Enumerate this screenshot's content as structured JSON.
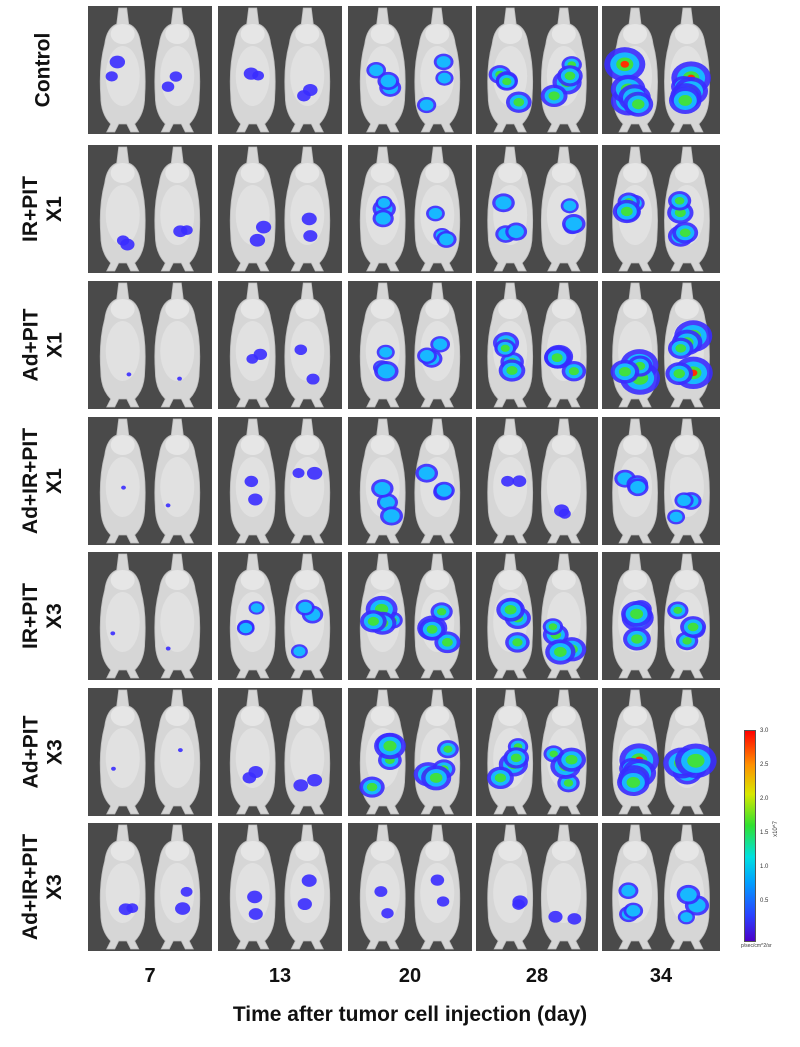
{
  "rows": [
    {
      "lines": [
        "Control"
      ]
    },
    {
      "lines": [
        "IR+PIT",
        "X1"
      ]
    },
    {
      "lines": [
        "Ad+PIT",
        "X1"
      ]
    },
    {
      "lines": [
        "Ad+IR+PIT",
        "X1"
      ]
    },
    {
      "lines": [
        "IR+PIT",
        "X3"
      ]
    },
    {
      "lines": [
        "Ad+PIT",
        "X3"
      ]
    },
    {
      "lines": [
        "Ad+IR+PIT",
        "X3"
      ]
    }
  ],
  "days": [
    "7",
    "13",
    "20",
    "28",
    "34"
  ],
  "xaxis_label": "Time after tumor cell injection (day)",
  "colorbar": {
    "ticks": [
      "3.0",
      "2.5",
      "2.0",
      "1.5",
      "1.0",
      "0.5"
    ],
    "unit": "x10^7",
    "footer": "p/sec/cm^2/sr"
  },
  "signal_levels": [
    [
      1,
      1,
      2,
      3,
      4
    ],
    [
      1,
      1,
      2,
      2,
      3
    ],
    [
      0,
      1,
      2,
      3,
      4
    ],
    [
      0,
      1,
      2,
      1,
      2
    ],
    [
      0,
      2,
      3,
      3,
      3
    ],
    [
      0,
      1,
      3,
      3,
      4
    ],
    [
      1,
      1,
      1,
      1,
      2
    ]
  ],
  "colors": {
    "panel_bg": "#4a4a4a",
    "mouse": "#d9d9d9"
  }
}
